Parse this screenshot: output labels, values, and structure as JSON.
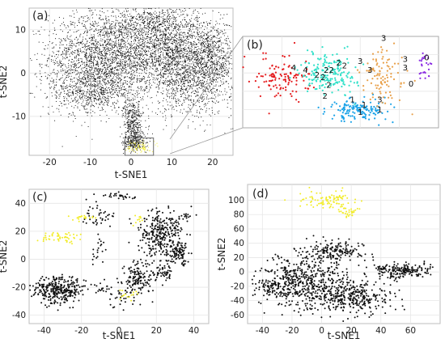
{
  "chart_data": [
    {
      "panel_label": "(a)",
      "type": "scatter",
      "xlabel": "t-SNE1",
      "ylabel": "t-SNE2",
      "xlim": [
        -25,
        25
      ],
      "ylim": [
        -19,
        15
      ],
      "xticks": [
        -20,
        -10,
        0,
        10,
        20
      ],
      "yticks": [
        10,
        0,
        -10
      ],
      "grid": true,
      "series": [
        {
          "color": "#111111",
          "clusters": [
            {
              "cx": -6,
              "cy": 4,
              "sx": 7,
              "sy": 5,
              "n": 2200
            },
            {
              "cx": 10,
              "cy": 5,
              "sx": 6,
              "sy": 4,
              "n": 1400
            },
            {
              "cx": 15,
              "cy": -2,
              "sx": 5,
              "sy": 4,
              "n": 900
            },
            {
              "cx": -10,
              "cy": -4,
              "sx": 5,
              "sy": 3,
              "n": 700
            },
            {
              "cx": 5,
              "cy": 12,
              "sx": 6,
              "sy": 2,
              "n": 500
            },
            {
              "cx": 20,
              "cy": 4,
              "sx": 2.5,
              "sy": 4,
              "n": 500
            },
            {
              "cx": 0.5,
              "cy": -12,
              "sx": 1.2,
              "sy": 3,
              "n": 450
            },
            {
              "cx": 1,
              "cy": -16,
              "sx": 1.5,
              "sy": 1,
              "n": 200
            }
          ]
        },
        {
          "color": "#f2ec2a",
          "clusters": [
            {
              "cx": 2,
              "cy": -17,
              "sx": 1.4,
              "sy": 0.7,
              "n": 90
            }
          ]
        }
      ],
      "highlight_box": {
        "x": [
          -1.5,
          5.5
        ],
        "y": [
          -19,
          -15
        ]
      }
    },
    {
      "panel_label": "(b)",
      "type": "scatter",
      "inset_of": "(a)",
      "grid": true,
      "xlim": [
        0,
        1
      ],
      "ylim": [
        0,
        1
      ],
      "series": [
        {
          "name": "4",
          "color": "#e41a1c",
          "clusters": [
            {
              "cx": 0.2,
              "cy": 0.55,
              "sx": 0.07,
              "sy": 0.12,
              "n": 120
            }
          ]
        },
        {
          "name": "2",
          "color": "#2ee0c8",
          "clusters": [
            {
              "cx": 0.44,
              "cy": 0.6,
              "sx": 0.07,
              "sy": 0.11,
              "n": 190
            }
          ]
        },
        {
          "name": "1",
          "color": "#1ca3e8",
          "clusters": [
            {
              "cx": 0.6,
              "cy": 0.2,
              "sx": 0.08,
              "sy": 0.06,
              "n": 150
            }
          ]
        },
        {
          "name": "3",
          "color": "#e8a04a",
          "clusters": [
            {
              "cx": 0.72,
              "cy": 0.55,
              "sx": 0.06,
              "sy": 0.16,
              "n": 100
            }
          ]
        },
        {
          "name": "0",
          "color": "#8a2be2",
          "clusters": [
            {
              "cx": 0.93,
              "cy": 0.68,
              "sx": 0.02,
              "sy": 0.07,
              "n": 25
            }
          ]
        }
      ],
      "labels": [
        {
          "text": "4",
          "x": 0.26,
          "y": 0.63
        },
        {
          "text": "4",
          "x": 0.32,
          "y": 0.6
        },
        {
          "text": "2",
          "x": 0.38,
          "y": 0.55
        },
        {
          "text": "22",
          "x": 0.44,
          "y": 0.6
        },
        {
          "text": "2",
          "x": 0.41,
          "y": 0.52
        },
        {
          "text": "2",
          "x": 0.44,
          "y": 0.44
        },
        {
          "text": "2",
          "x": 0.52,
          "y": 0.65
        },
        {
          "text": "2",
          "x": 0.49,
          "y": 0.68
        },
        {
          "text": "2",
          "x": 0.42,
          "y": 0.32
        },
        {
          "text": "3",
          "x": 0.72,
          "y": 0.95
        },
        {
          "text": "3",
          "x": 0.83,
          "y": 0.72
        },
        {
          "text": "3",
          "x": 0.83,
          "y": 0.63
        },
        {
          "text": "3",
          "x": 0.6,
          "y": 0.7
        },
        {
          "text": "3",
          "x": 0.65,
          "y": 0.6
        },
        {
          "text": "3",
          "x": 0.7,
          "y": 0.28
        },
        {
          "text": "1",
          "x": 0.62,
          "y": 0.22
        },
        {
          "text": "1",
          "x": 0.56,
          "y": 0.28
        },
        {
          "text": "1",
          "x": 0.6,
          "y": 0.14
        },
        {
          "text": "1",
          "x": 0.7,
          "y": 0.17
        },
        {
          "text": "0",
          "x": 0.94,
          "y": 0.74
        },
        {
          "text": "0",
          "x": 0.86,
          "y": 0.45
        }
      ]
    },
    {
      "panel_label": "(c)",
      "type": "scatter",
      "xlabel": "t-SNE1",
      "ylabel": "t-SNE2",
      "xlim": [
        -48,
        48
      ],
      "ylim": [
        -46,
        50
      ],
      "xticks": [
        -40,
        -20,
        0,
        20,
        40
      ],
      "yticks": [
        40,
        20,
        0,
        -20,
        -40
      ],
      "grid": true,
      "series": [
        {
          "color": "#111111",
          "clusters": [
            {
              "cx": -32,
              "cy": -22,
              "sx": 7,
              "sy": 5,
              "n": 320
            },
            {
              "cx": 22,
              "cy": 18,
              "sx": 6,
              "sy": 8,
              "n": 300
            },
            {
              "cx": 10,
              "cy": -15,
              "sx": 4,
              "sy": 7,
              "n": 150
            },
            {
              "cx": 32,
              "cy": 4,
              "sx": 3,
              "sy": 4,
              "n": 90
            },
            {
              "cx": 25,
              "cy": -10,
              "sx": 3,
              "sy": 3,
              "n": 50
            },
            {
              "cx": 0,
              "cy": 45,
              "sx": 6,
              "sy": 1.2,
              "n": 30
            },
            {
              "cx": -10,
              "cy": 30,
              "sx": 5,
              "sy": 4,
              "n": 40
            },
            {
              "cx": 0,
              "cy": -30,
              "sx": 3,
              "sy": 4,
              "n": 25
            },
            {
              "cx": 35,
              "cy": 30,
              "sx": 1.5,
              "sy": 1.2,
              "n": 15
            },
            {
              "cx": -10,
              "cy": 8,
              "sx": 2,
              "sy": 6,
              "n": 20
            },
            {
              "cx": -8,
              "cy": -20,
              "sx": 2,
              "sy": 2,
              "n": 15
            }
          ]
        },
        {
          "color": "#f2ec2a",
          "clusters": [
            {
              "cx": -32,
              "cy": 16,
              "sx": 6,
              "sy": 2,
              "n": 50
            },
            {
              "cx": -20,
              "cy": 30,
              "sx": 4,
              "sy": 1,
              "n": 20
            },
            {
              "cx": 5,
              "cy": -25,
              "sx": 3,
              "sy": 2,
              "n": 15
            },
            {
              "cx": 10,
              "cy": 28,
              "sx": 2,
              "sy": 2,
              "n": 10
            }
          ]
        }
      ]
    },
    {
      "panel_label": "(d)",
      "type": "scatter",
      "xlabel": "t-SNE1",
      "ylabel": "t-SNE2",
      "xlim": [
        -50,
        80
      ],
      "ylim": [
        -72,
        122
      ],
      "xticks": [
        -40,
        -20,
        0,
        20,
        40,
        60
      ],
      "yticks": [
        100,
        80,
        60,
        40,
        20,
        0,
        -20,
        -40,
        -60
      ],
      "grid": true,
      "series": [
        {
          "color": "#111111",
          "clusters": [
            {
              "cx": -10,
              "cy": -10,
              "sx": 14,
              "sy": 18,
              "n": 450
            },
            {
              "cx": 20,
              "cy": -35,
              "sx": 14,
              "sy": 12,
              "n": 350
            },
            {
              "cx": 55,
              "cy": 2,
              "sx": 10,
              "sy": 5,
              "n": 200
            },
            {
              "cx": 10,
              "cy": 30,
              "sx": 10,
              "sy": 7,
              "n": 150
            },
            {
              "cx": -30,
              "cy": -20,
              "sx": 8,
              "sy": 10,
              "n": 120
            }
          ]
        },
        {
          "color": "#f2ec2a",
          "clusters": [
            {
              "cx": 5,
              "cy": 100,
              "sx": 10,
              "sy": 6,
              "n": 90
            },
            {
              "cx": 18,
              "cy": 85,
              "sx": 3,
              "sy": 4,
              "n": 30
            }
          ]
        }
      ]
    }
  ]
}
